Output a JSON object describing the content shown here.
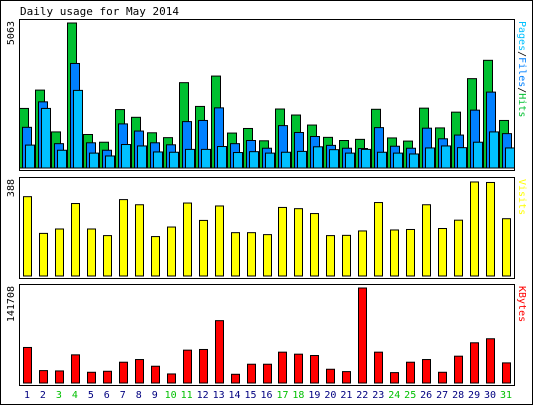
{
  "title": "Daily usage for May 2014",
  "colors": {
    "background": "#ffffff",
    "frame": "#000000",
    "panel_border": "#000000",
    "hits": "#00c030",
    "files": "#0080ff",
    "pages": "#00c0ff",
    "visits": "#ffff00",
    "kbytes": "#ff0000",
    "weekday_label": "#000080",
    "weekend_label": "#00c000"
  },
  "chart_data": [
    {
      "type": "bar",
      "panel": "hits-files-pages",
      "ymax_label": "5063",
      "ylim": [
        0,
        5063
      ],
      "legend": [
        "Pages",
        "/",
        "Files",
        "/",
        "Hits"
      ],
      "categories": [
        "1",
        "2",
        "3",
        "4",
        "5",
        "6",
        "7",
        "8",
        "9",
        "10",
        "11",
        "12",
        "13",
        "14",
        "15",
        "16",
        "17",
        "18",
        "19",
        "20",
        "21",
        "22",
        "23",
        "24",
        "25",
        "26",
        "27",
        "28",
        "29",
        "30",
        "31"
      ],
      "series": [
        {
          "name": "Hits",
          "values": [
            2080,
            2720,
            1260,
            5063,
            1170,
            900,
            2040,
            1770,
            1230,
            1060,
            2980,
            2150,
            3210,
            1220,
            1380,
            950,
            2060,
            1850,
            1500,
            1070,
            960,
            1000,
            2050,
            1050,
            940,
            2090,
            1400,
            1950,
            3120,
            3760,
            1660
          ]
        },
        {
          "name": "Files",
          "values": [
            1420,
            2310,
            850,
            3650,
            880,
            620,
            1540,
            1290,
            880,
            810,
            1620,
            1660,
            2100,
            850,
            960,
            690,
            1480,
            1240,
            1100,
            790,
            690,
            680,
            1410,
            760,
            690,
            1390,
            1020,
            1150,
            2020,
            2650,
            1200
          ]
        },
        {
          "name": "Pages",
          "values": [
            800,
            2080,
            620,
            2710,
            520,
            420,
            820,
            770,
            560,
            550,
            650,
            650,
            750,
            540,
            570,
            520,
            550,
            580,
            740,
            640,
            520,
            650,
            550,
            520,
            490,
            700,
            770,
            710,
            900,
            1260,
            700
          ]
        }
      ]
    },
    {
      "type": "bar",
      "panel": "visits",
      "ymax_label": "388",
      "ylim": [
        0,
        388
      ],
      "legend": [
        "Visits"
      ],
      "categories": [
        "1",
        "2",
        "3",
        "4",
        "5",
        "6",
        "7",
        "8",
        "9",
        "10",
        "11",
        "12",
        "13",
        "14",
        "15",
        "16",
        "17",
        "18",
        "19",
        "20",
        "21",
        "22",
        "23",
        "24",
        "25",
        "26",
        "27",
        "28",
        "29",
        "30",
        "31"
      ],
      "series": [
        {
          "name": "Visits",
          "values": [
            324,
            174,
            192,
            296,
            192,
            165,
            312,
            291,
            161,
            200,
            298,
            227,
            286,
            177,
            177,
            169,
            280,
            275,
            255,
            165,
            166,
            184,
            300,
            188,
            190,
            291,
            194,
            228,
            384,
            382,
            234
          ]
        }
      ]
    },
    {
      "type": "bar",
      "panel": "kbytes",
      "ymax_label": "141708",
      "ylim": [
        0,
        141708
      ],
      "legend": [
        "KBytes"
      ],
      "categories": [
        "1",
        "2",
        "3",
        "4",
        "5",
        "6",
        "7",
        "8",
        "9",
        "10",
        "11",
        "12",
        "13",
        "14",
        "15",
        "16",
        "17",
        "18",
        "19",
        "20",
        "21",
        "22",
        "23",
        "24",
        "25",
        "26",
        "27",
        "28",
        "29",
        "30",
        "31"
      ],
      "series": [
        {
          "name": "KBytes",
          "values": [
            53000,
            18500,
            18000,
            42000,
            16000,
            17500,
            31000,
            35000,
            25000,
            13500,
            49000,
            50000,
            93000,
            13000,
            28000,
            28000,
            46000,
            43000,
            41000,
            20500,
            17000,
            141708,
            46000,
            15500,
            31000,
            35000,
            16000,
            40000,
            60000,
            66000,
            30000
          ]
        }
      ]
    }
  ],
  "x_labels": [
    "1",
    "2",
    "3",
    "4",
    "5",
    "6",
    "7",
    "8",
    "9",
    "10",
    "11",
    "12",
    "13",
    "14",
    "15",
    "16",
    "17",
    "18",
    "19",
    "20",
    "21",
    "22",
    "23",
    "24",
    "25",
    "26",
    "27",
    "28",
    "29",
    "30",
    "31"
  ],
  "weekend_days": [
    "3",
    "4",
    "10",
    "11",
    "17",
    "18",
    "24",
    "25",
    "31"
  ]
}
